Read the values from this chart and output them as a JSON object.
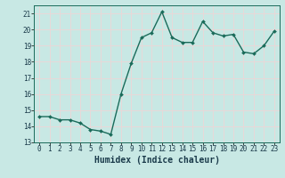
{
  "x": [
    0,
    1,
    2,
    3,
    4,
    5,
    6,
    7,
    8,
    9,
    10,
    11,
    12,
    13,
    14,
    15,
    16,
    17,
    18,
    19,
    20,
    21,
    22,
    23
  ],
  "y": [
    14.6,
    14.6,
    14.4,
    14.4,
    14.2,
    13.8,
    13.7,
    13.5,
    16.0,
    17.9,
    19.5,
    19.8,
    21.1,
    19.5,
    19.2,
    19.2,
    20.5,
    19.8,
    19.6,
    19.7,
    18.6,
    18.5,
    19.0,
    19.9
  ],
  "line_color": "#1a6b5a",
  "marker_color": "#1a6b5a",
  "bg_color": "#c8e8e4",
  "grid_color": "#e8d8d8",
  "xlabel": "Humidex (Indice chaleur)",
  "xlim": [
    -0.5,
    23.5
  ],
  "ylim": [
    13,
    21.5
  ],
  "yticks": [
    13,
    14,
    15,
    16,
    17,
    18,
    19,
    20,
    21
  ],
  "xticks": [
    0,
    1,
    2,
    3,
    4,
    5,
    6,
    7,
    8,
    9,
    10,
    11,
    12,
    13,
    14,
    15,
    16,
    17,
    18,
    19,
    20,
    21,
    22,
    23
  ],
  "tick_fontsize": 5.5,
  "xlabel_fontsize": 7,
  "linewidth": 1.0,
  "markersize": 2.0
}
